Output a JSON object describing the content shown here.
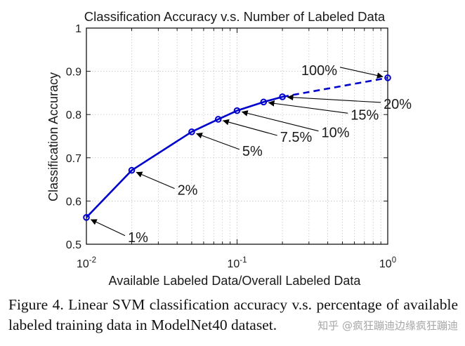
{
  "chart_data": {
    "type": "line",
    "title": "Classification Accuracy v.s. Number of Labeled Data",
    "xlabel": "Available Labeled Data/Overall Labeled Data",
    "ylabel": "Classification Accuracy",
    "xscale": "log",
    "xlim": [
      0.01,
      1
    ],
    "ylim": [
      0.5,
      1
    ],
    "grid": true,
    "xticks": [
      {
        "value": 0.01,
        "base": "10",
        "exp": "-2"
      },
      {
        "value": 0.1,
        "base": "10",
        "exp": "-1"
      },
      {
        "value": 1,
        "base": "10",
        "exp": "0"
      }
    ],
    "yticks": [
      {
        "value": 0.5,
        "label": "0.5"
      },
      {
        "value": 0.6,
        "label": "0.6"
      },
      {
        "value": 0.7,
        "label": "0.7"
      },
      {
        "value": 0.8,
        "label": "0.8"
      },
      {
        "value": 0.9,
        "label": "0.9"
      },
      {
        "value": 1.0,
        "label": "1"
      }
    ],
    "series": [
      {
        "x": [
          0.01,
          0.02,
          0.05,
          0.075,
          0.1,
          0.15,
          0.2,
          1.0
        ],
        "y": [
          0.562,
          0.671,
          0.76,
          0.789,
          0.809,
          0.829,
          0.841,
          0.885
        ],
        "color": "#0000cc",
        "solid_until_index": 6,
        "marker": "circle-open"
      }
    ],
    "annotations": [
      {
        "label": "1%",
        "point_index": 0
      },
      {
        "label": "2%",
        "point_index": 1
      },
      {
        "label": "5%",
        "point_index": 2
      },
      {
        "label": "7.5%",
        "point_index": 3
      },
      {
        "label": "10%",
        "point_index": 4
      },
      {
        "label": "15%",
        "point_index": 5
      },
      {
        "label": "20%",
        "point_index": 6
      },
      {
        "label": "100%",
        "point_index": 7
      }
    ]
  },
  "caption": "Figure 4. Linear SVM classification accuracy v.s. percentage of available labeled training data in ModelNet40 dataset.",
  "watermark": "知乎 @疯狂蹦迪边缘疯狂蹦迪"
}
